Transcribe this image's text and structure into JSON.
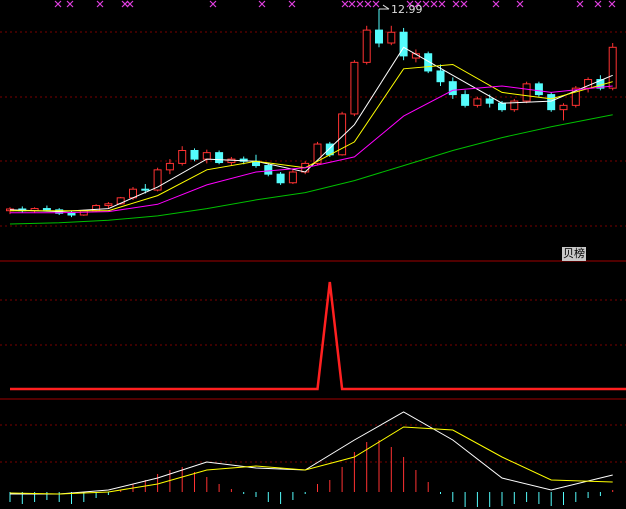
{
  "chart_data": [
    {
      "type": "candlestick",
      "ylim": [
        7.2,
        13.2
      ],
      "up_color": "#ff3232",
      "down_color": "#54fcfc",
      "open": [
        8.3,
        8.34,
        8.3,
        8.35,
        8.32,
        8.24,
        8.2,
        8.3,
        8.42,
        8.46,
        8.6,
        8.8,
        8.78,
        9.25,
        9.4,
        9.7,
        9.5,
        9.65,
        9.42,
        9.5,
        9.45,
        9.35,
        9.15,
        8.95,
        9.2,
        9.4,
        9.85,
        9.6,
        10.55,
        11.75,
        12.5,
        12.2,
        12.45,
        11.85,
        11.95,
        11.55,
        11.3,
        11.0,
        10.75,
        10.9,
        10.8,
        10.65,
        10.85,
        11.25,
        11.0,
        10.65,
        10.75,
        11.15,
        11.35,
        11.15
      ],
      "high": [
        8.38,
        8.4,
        8.38,
        8.42,
        8.36,
        8.3,
        8.32,
        8.45,
        8.5,
        8.62,
        8.85,
        8.92,
        9.3,
        9.5,
        9.8,
        9.75,
        9.72,
        9.7,
        9.55,
        9.56,
        9.6,
        9.4,
        9.2,
        9.25,
        9.45,
        9.9,
        9.9,
        10.6,
        11.8,
        12.6,
        12.99,
        12.6,
        12.55,
        12.05,
        12.0,
        11.7,
        11.4,
        11.1,
        10.95,
        11.0,
        10.85,
        10.9,
        11.3,
        11.3,
        11.05,
        10.8,
        11.2,
        11.4,
        11.45,
        12.2
      ],
      "low": [
        8.22,
        8.26,
        8.25,
        8.28,
        8.2,
        8.15,
        8.18,
        8.28,
        8.36,
        8.44,
        8.55,
        8.7,
        8.75,
        9.15,
        9.35,
        9.45,
        9.4,
        9.38,
        9.35,
        9.38,
        9.3,
        9.1,
        8.9,
        8.92,
        9.15,
        9.35,
        9.55,
        9.58,
        10.5,
        11.7,
        12.1,
        12.15,
        11.8,
        11.75,
        11.5,
        11.2,
        10.9,
        10.7,
        10.7,
        10.7,
        10.6,
        10.6,
        10.8,
        10.95,
        10.6,
        10.4,
        10.7,
        11.05,
        11.1,
        11.1
      ],
      "close": [
        8.34,
        8.3,
        8.35,
        8.32,
        8.24,
        8.2,
        8.3,
        8.42,
        8.46,
        8.6,
        8.8,
        8.78,
        9.25,
        9.4,
        9.7,
        9.5,
        9.65,
        9.42,
        9.5,
        9.45,
        9.35,
        9.15,
        8.95,
        9.2,
        9.4,
        9.85,
        9.6,
        10.55,
        11.75,
        12.5,
        12.2,
        12.45,
        11.9,
        11.95,
        11.55,
        11.3,
        11.0,
        10.75,
        10.9,
        10.8,
        10.65,
        10.85,
        11.25,
        11.0,
        10.65,
        10.75,
        11.15,
        11.35,
        11.15,
        12.1
      ],
      "lines": [
        {
          "color": "#ffffff",
          "x": [
            0,
            4,
            8,
            12,
            16,
            20,
            24,
            28,
            32,
            36,
            40,
            44,
            49
          ],
          "values": [
            8.32,
            8.28,
            8.35,
            8.85,
            9.5,
            9.45,
            9.2,
            10.3,
            12.1,
            11.45,
            10.8,
            10.85,
            11.45
          ]
        },
        {
          "color": "#ffff00",
          "x": [
            0,
            4,
            8,
            12,
            16,
            20,
            24,
            28,
            32,
            36,
            40,
            44,
            49
          ],
          "values": [
            8.3,
            8.3,
            8.3,
            8.65,
            9.25,
            9.45,
            9.3,
            9.9,
            11.6,
            11.7,
            11.05,
            10.9,
            11.3
          ]
        },
        {
          "color": "#ff00ff",
          "x": [
            0,
            4,
            8,
            12,
            16,
            20,
            24,
            28,
            32,
            36,
            40,
            44,
            49
          ],
          "values": [
            8.25,
            8.25,
            8.28,
            8.45,
            8.9,
            9.2,
            9.3,
            9.55,
            10.5,
            11.1,
            11.2,
            11.05,
            11.2
          ]
        },
        {
          "color": "#00c000",
          "x": [
            0,
            4,
            8,
            12,
            16,
            20,
            24,
            28,
            32,
            36,
            40,
            44,
            49
          ],
          "values": [
            7.99,
            8.02,
            8.08,
            8.18,
            8.35,
            8.55,
            8.72,
            9.0,
            9.35,
            9.7,
            10.0,
            10.25,
            10.53
          ]
        }
      ]
    },
    {
      "type": "line",
      "label": "贝榜",
      "ylim": [
        0,
        1
      ],
      "color": "#ff2020",
      "values": [
        0,
        0,
        0,
        0,
        0,
        0,
        0,
        0,
        0,
        0,
        0,
        0,
        0,
        0,
        0,
        0,
        0,
        0,
        0,
        0,
        0,
        0,
        0,
        0,
        0,
        0,
        1,
        0,
        0,
        0,
        0,
        0,
        0,
        0,
        0,
        0,
        0,
        0,
        0,
        0,
        0,
        0,
        0,
        0,
        0,
        0,
        0,
        0,
        0,
        0
      ]
    },
    {
      "type": "macd",
      "ylim": [
        -0.17,
        0.92
      ],
      "up_color": "#ff3232",
      "down_color": "#54fcfc",
      "values": [
        -0.1,
        -0.12,
        -0.1,
        -0.08,
        -0.1,
        -0.12,
        -0.1,
        -0.06,
        -0.03,
        0.02,
        0.08,
        0.12,
        0.18,
        0.22,
        0.25,
        0.2,
        0.15,
        0.08,
        0.03,
        -0.02,
        -0.05,
        -0.1,
        -0.12,
        -0.08,
        -0.02,
        0.08,
        0.12,
        0.25,
        0.4,
        0.5,
        0.52,
        0.45,
        0.35,
        0.22,
        0.1,
        -0.02,
        -0.1,
        -0.15,
        -0.15,
        -0.15,
        -0.14,
        -0.12,
        -0.1,
        -0.12,
        -0.14,
        -0.13,
        -0.1,
        -0.06,
        -0.04,
        0.02
      ],
      "lines": [
        {
          "color": "#ffffff",
          "x": [
            0,
            4,
            8,
            12,
            16,
            20,
            24,
            28,
            32,
            36,
            40,
            44,
            49
          ],
          "values": [
            -0.02,
            -0.02,
            0.02,
            0.14,
            0.3,
            0.24,
            0.22,
            0.52,
            0.8,
            0.52,
            0.14,
            0.02,
            0.17
          ]
        },
        {
          "color": "#ffff00",
          "x": [
            0,
            4,
            8,
            12,
            16,
            20,
            24,
            28,
            32,
            36,
            40,
            44,
            49
          ],
          "values": [
            -0.01,
            -0.02,
            0.0,
            0.08,
            0.22,
            0.26,
            0.22,
            0.35,
            0.65,
            0.62,
            0.35,
            0.12,
            0.1
          ]
        }
      ]
    }
  ]
}
